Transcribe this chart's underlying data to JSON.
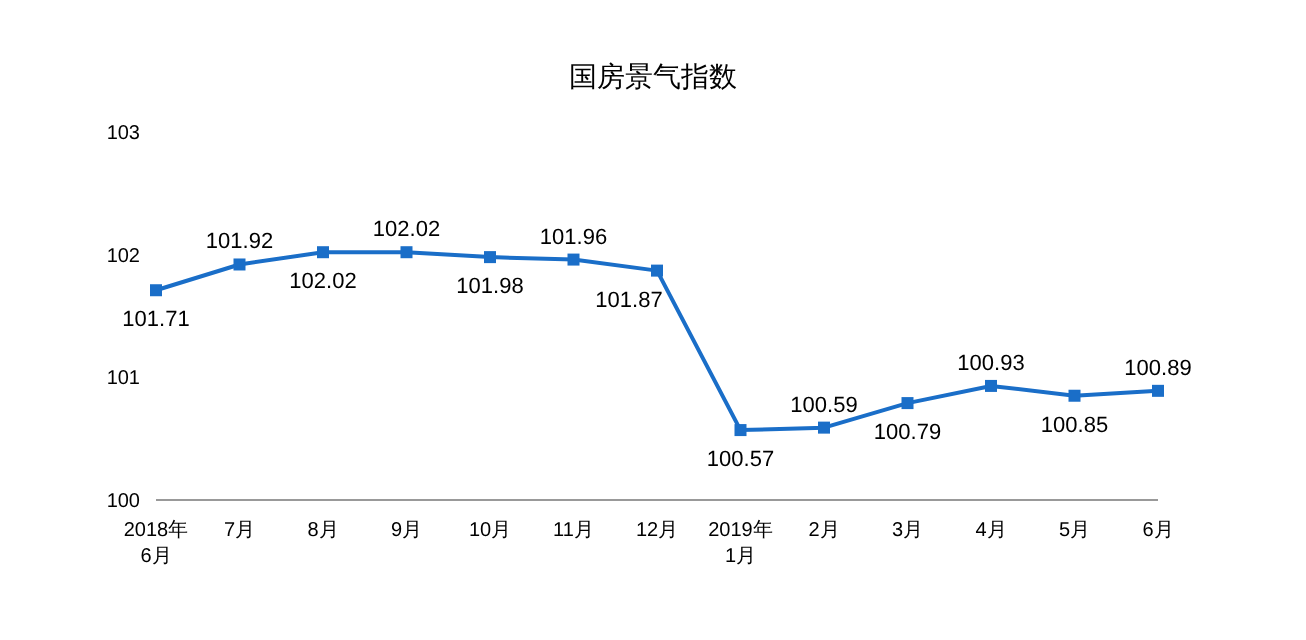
{
  "chart_data": {
    "type": "line",
    "title": "国房景气指数",
    "categories": [
      "2018年\n6月",
      "7月",
      "8月",
      "9月",
      "10月",
      "11月",
      "12月",
      "2019年\n1月",
      "2月",
      "3月",
      "4月",
      "5月",
      "6月"
    ],
    "series": [
      {
        "color": "#1a6ec8",
        "values": [
          101.71,
          101.92,
          102.02,
          102.02,
          101.98,
          101.96,
          101.87,
          100.57,
          100.59,
          100.79,
          100.93,
          100.85,
          100.89
        ]
      }
    ],
    "ylim": [
      100,
      103
    ],
    "yticks": [
      100,
      101,
      102,
      103
    ],
    "grid": false,
    "legend": false,
    "marker": "square",
    "line_style": "solid",
    "data_labels": true
  }
}
